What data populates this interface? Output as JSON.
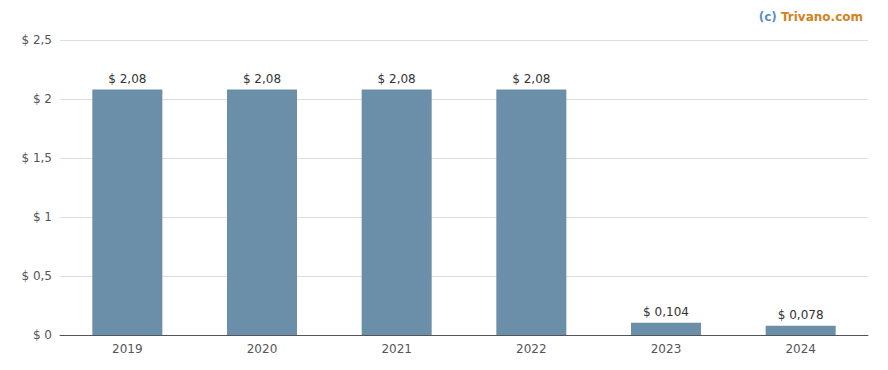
{
  "chart_data": {
    "type": "bar",
    "categories": [
      "2019",
      "2020",
      "2021",
      "2022",
      "2023",
      "2024"
    ],
    "values": [
      2.08,
      2.08,
      2.08,
      2.08,
      0.104,
      0.078
    ],
    "value_labels": [
      "$ 2,08",
      "$ 2,08",
      "$ 2,08",
      "$ 2,08",
      "$ 0,104",
      "$ 0,078"
    ],
    "data_labels": true,
    "color": "#6b8fa8",
    "ylim": [
      0,
      2.5
    ],
    "yticks": [
      {
        "value": 0,
        "label": "$ 0"
      },
      {
        "value": 0.5,
        "label": "$ 0,5"
      },
      {
        "value": 1.0,
        "label": "$ 1"
      },
      {
        "value": 1.5,
        "label": "$ 1,5"
      },
      {
        "value": 2.0,
        "label": "$ 2"
      },
      {
        "value": 2.5,
        "label": "$ 2,5"
      }
    ],
    "grid": true,
    "annotations": [
      {
        "text": "(c) ",
        "color": "#5b8ec9"
      },
      {
        "text": "Trivano.com",
        "color": "#d4821e"
      }
    ]
  }
}
